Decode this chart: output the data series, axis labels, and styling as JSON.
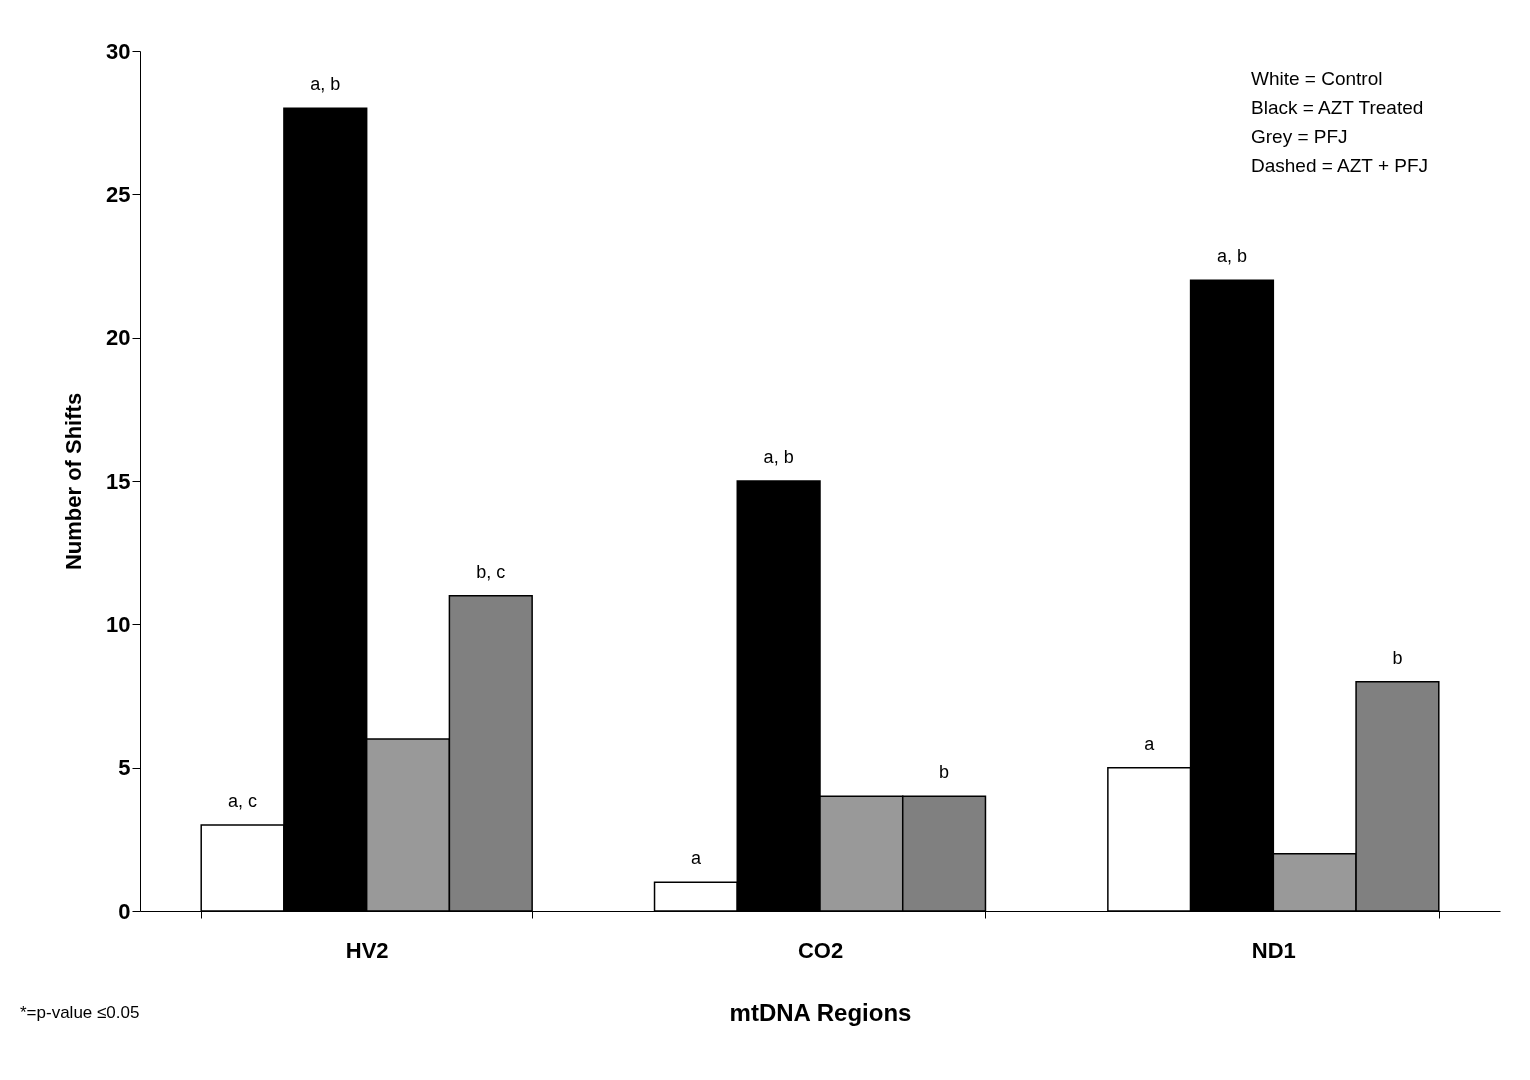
{
  "chart_data": {
    "type": "bar",
    "xlabel": "mtDNA Regions",
    "ylabel": "Number of Shifts",
    "categories": [
      "HV2",
      "CO2",
      "ND1"
    ],
    "series": [
      {
        "color": "#ffffff",
        "values": [
          3,
          1,
          5
        ],
        "value_labels": [
          "a, c",
          "a",
          "a"
        ]
      },
      {
        "color": "#000000",
        "values": [
          28,
          15,
          22
        ],
        "value_labels": [
          "a, b",
          "a, b",
          "a, b"
        ]
      },
      {
        "color": "#999999",
        "values": [
          6,
          4,
          2
        ],
        "value_labels": [
          null,
          null,
          null
        ]
      },
      {
        "color": "#808080",
        "values": [
          11,
          4,
          8
        ],
        "value_labels": [
          "b, c",
          "b",
          "b"
        ]
      }
    ],
    "ylim": [
      0,
      30
    ],
    "yticks": [
      0,
      5,
      10,
      15,
      20,
      25,
      30
    ],
    "grid": false,
    "annotations": [
      "White = Control",
      "Black = AZT Treated",
      "Grey =  PFJ",
      "Dashed = AZT + PFJ",
      "*=p-value ≤0.05"
    ]
  }
}
